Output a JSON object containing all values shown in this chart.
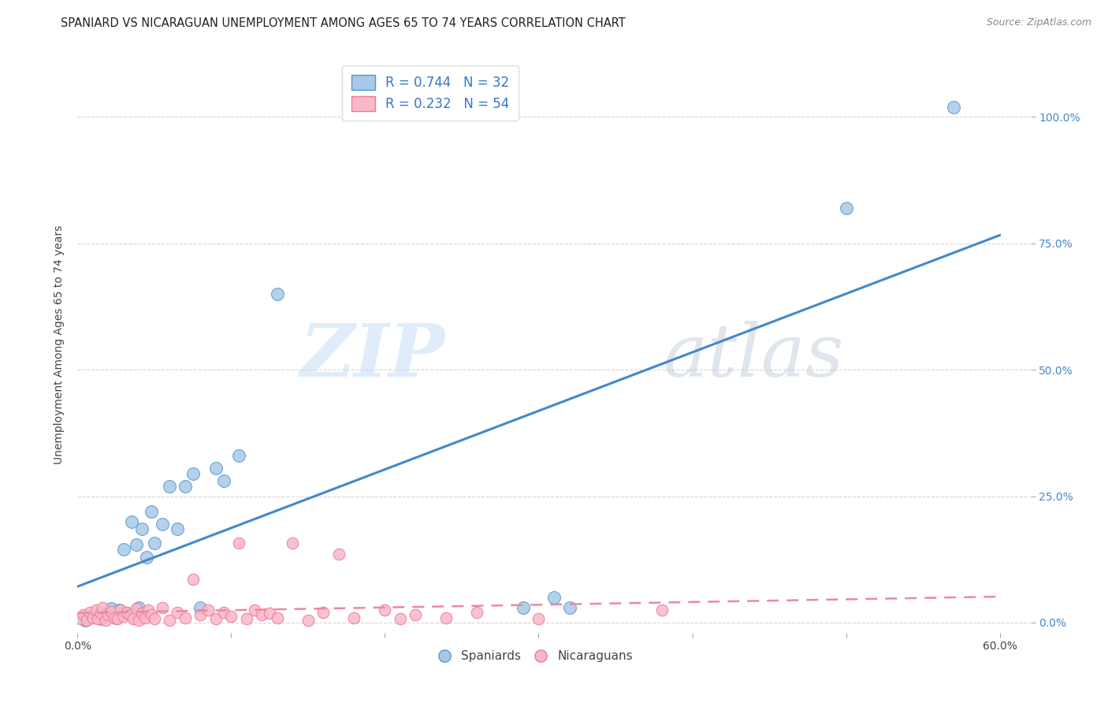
{
  "title": "SPANIARD VS NICARAGUAN UNEMPLOYMENT AMONG AGES 65 TO 74 YEARS CORRELATION CHART",
  "source": "Source: ZipAtlas.com",
  "ylabel": "Unemployment Among Ages 65 to 74 years",
  "xlim": [
    0.0,
    0.62
  ],
  "ylim": [
    -0.02,
    1.12
  ],
  "xtick_vals": [
    0.0,
    0.1,
    0.2,
    0.3,
    0.4,
    0.5,
    0.6
  ],
  "ytick_vals": [
    0.0,
    0.25,
    0.5,
    0.75,
    1.0
  ],
  "yticklabels_right": [
    "0.0%",
    "25.0%",
    "50.0%",
    "75.0%",
    "100.0%"
  ],
  "watermark_zip": "ZIP",
  "watermark_atlas": "atlas",
  "legend_label1": "R = 0.744   N = 32",
  "legend_label2": "R = 0.232   N = 54",
  "legend_group1": "Spaniards",
  "legend_group2": "Nicaraguans",
  "blue_face": "#a8c8e8",
  "blue_edge": "#5599cc",
  "pink_face": "#f8b8c8",
  "pink_edge": "#ee7799",
  "line_blue": "#4488cc",
  "line_pink": "#ee8899",
  "background_color": "#ffffff",
  "grid_color": "#cccccc",
  "right_axis_color": "#4488cc",
  "spaniards_x": [
    0.005,
    0.01,
    0.015,
    0.018,
    0.02,
    0.022,
    0.025,
    0.027,
    0.03,
    0.032,
    0.035,
    0.038,
    0.04,
    0.042,
    0.045,
    0.048,
    0.05,
    0.055,
    0.06,
    0.065,
    0.07,
    0.075,
    0.08,
    0.09,
    0.095,
    0.105,
    0.13,
    0.29,
    0.31,
    0.32,
    0.5,
    0.57
  ],
  "spaniards_y": [
    0.005,
    0.012,
    0.008,
    0.015,
    0.02,
    0.028,
    0.01,
    0.025,
    0.145,
    0.018,
    0.2,
    0.155,
    0.03,
    0.185,
    0.13,
    0.22,
    0.158,
    0.195,
    0.27,
    0.185,
    0.27,
    0.295,
    0.03,
    0.305,
    0.28,
    0.33,
    0.65,
    0.03,
    0.05,
    0.03,
    0.82,
    1.02
  ],
  "nicaraguans_x": [
    0.002,
    0.004,
    0.006,
    0.008,
    0.01,
    0.012,
    0.013,
    0.015,
    0.016,
    0.018,
    0.02,
    0.022,
    0.024,
    0.026,
    0.028,
    0.03,
    0.032,
    0.034,
    0.036,
    0.038,
    0.04,
    0.042,
    0.044,
    0.046,
    0.048,
    0.05,
    0.055,
    0.06,
    0.065,
    0.07,
    0.075,
    0.08,
    0.085,
    0.09,
    0.095,
    0.1,
    0.105,
    0.11,
    0.115,
    0.12,
    0.125,
    0.13,
    0.14,
    0.15,
    0.16,
    0.17,
    0.18,
    0.2,
    0.21,
    0.22,
    0.24,
    0.26,
    0.3,
    0.38
  ],
  "nicaraguans_y": [
    0.008,
    0.015,
    0.005,
    0.02,
    0.01,
    0.025,
    0.008,
    0.018,
    0.03,
    0.005,
    0.015,
    0.022,
    0.01,
    0.008,
    0.025,
    0.012,
    0.02,
    0.015,
    0.008,
    0.028,
    0.005,
    0.018,
    0.01,
    0.025,
    0.015,
    0.008,
    0.03,
    0.005,
    0.02,
    0.01,
    0.085,
    0.015,
    0.025,
    0.008,
    0.02,
    0.012,
    0.158,
    0.008,
    0.025,
    0.015,
    0.018,
    0.01,
    0.158,
    0.005,
    0.02,
    0.135,
    0.01,
    0.025,
    0.008,
    0.015,
    0.01,
    0.02,
    0.008,
    0.025
  ]
}
